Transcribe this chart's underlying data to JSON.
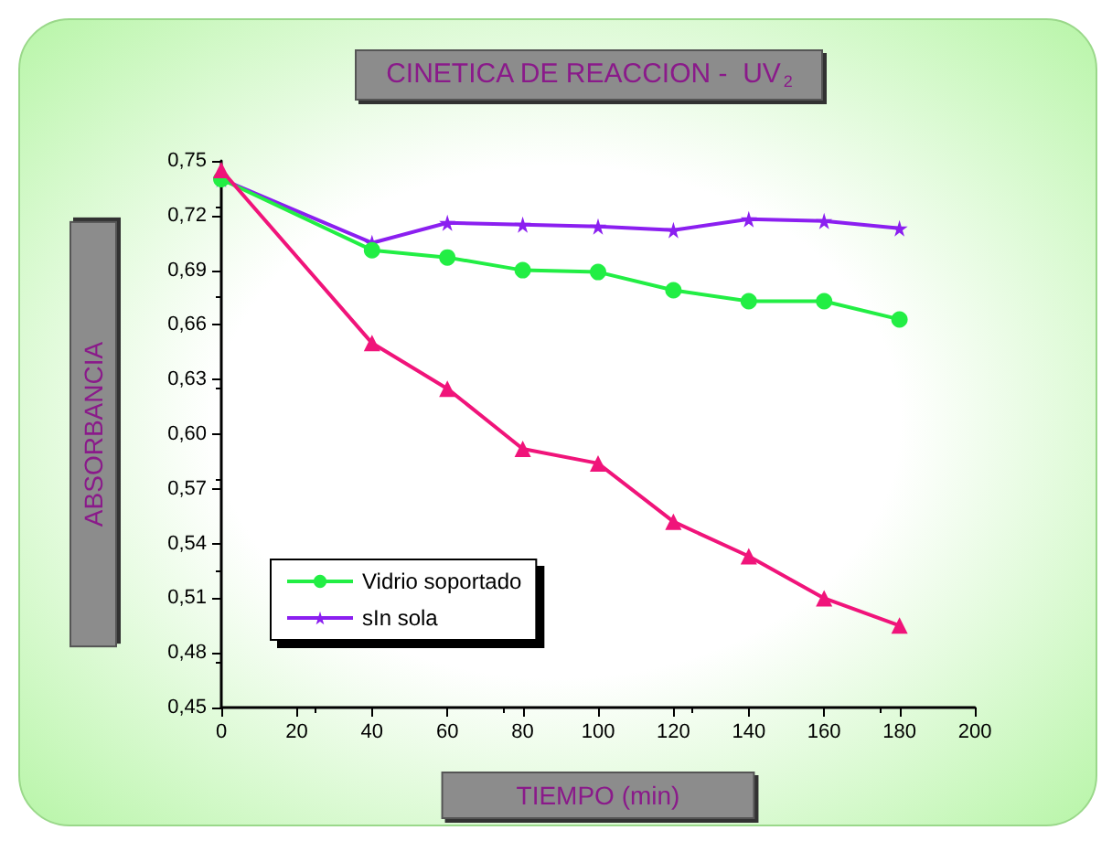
{
  "chart_data": {
    "type": "line",
    "title": "CINETICA DE REACCION -  UV$_{2}$",
    "xlabel": "TIEMPO (min)",
    "ylabel": "ABSORBANCIA",
    "x": [
      0,
      40,
      60,
      80,
      100,
      120,
      140,
      160,
      180
    ],
    "series": [
      {
        "color": "#f0147a",
        "marker": "triangle",
        "values": [
          0.745,
          0.65,
          0.625,
          0.592,
          0.584,
          0.552,
          0.533,
          0.51,
          0.495
        ]
      },
      {
        "name": "Vidrio soportado",
        "color": "#22ee44",
        "marker": "circle",
        "values": [
          0.74,
          0.701,
          0.697,
          0.69,
          0.689,
          0.679,
          0.673,
          0.673,
          0.663
        ]
      },
      {
        "name": "sIn sola",
        "color": "#8b1ff0",
        "marker": "star",
        "values": [
          0.74,
          0.705,
          0.716,
          0.715,
          0.714,
          0.712,
          0.718,
          0.717,
          0.713
        ]
      }
    ],
    "xlim": [
      0,
      200
    ],
    "xticks": [
      0,
      20,
      40,
      60,
      80,
      100,
      120,
      140,
      160,
      180,
      200
    ],
    "ylim": [
      0.45,
      0.75
    ],
    "yticks": [
      {
        "value": 0.45,
        "label": "0,45"
      },
      {
        "value": 0.48,
        "label": "0,48"
      },
      {
        "value": 0.51,
        "label": "0,51"
      },
      {
        "value": 0.54,
        "label": "0,54"
      },
      {
        "value": 0.57,
        "label": "0,57"
      },
      {
        "value": 0.6,
        "label": "0,60"
      },
      {
        "value": 0.63,
        "label": "0,63"
      },
      {
        "value": 0.66,
        "label": "0,66"
      },
      {
        "value": 0.69,
        "label": "0,69"
      },
      {
        "value": 0.72,
        "label": "0,72"
      },
      {
        "value": 0.75,
        "label": "0,75"
      }
    ],
    "grid": false,
    "legend": "bottom left",
    "line_style": "solid"
  }
}
